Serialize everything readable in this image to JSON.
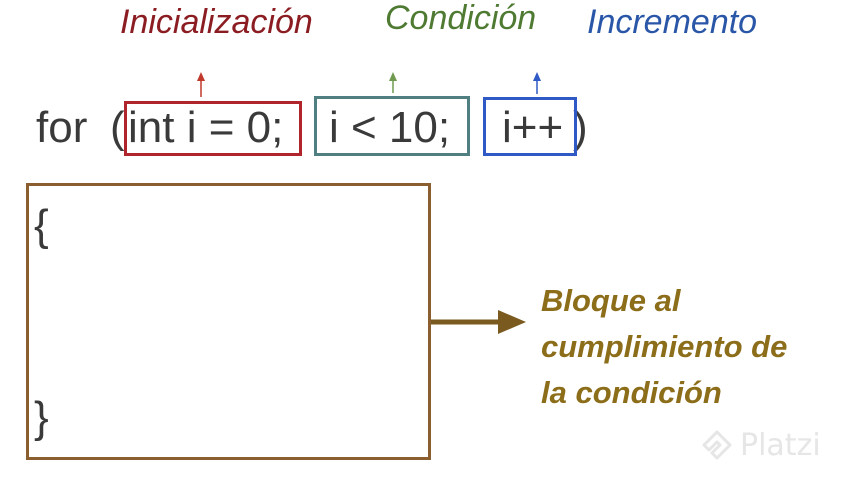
{
  "labels": {
    "initialization": "Inicialización",
    "condition": "Condición",
    "increment": "Incremento"
  },
  "code": {
    "keyword": "for",
    "open_paren": "(",
    "initialization": "int i = 0;",
    "condition": "i < 10;",
    "increment": "i++",
    "close_paren": ")",
    "open_brace": "{",
    "close_brace": "}"
  },
  "block_label": {
    "lines": [
      "Bloque al",
      "cumplimiento de",
      "la condición"
    ]
  },
  "watermark": {
    "text": "Platzi",
    "icon": "platzi-logo-icon"
  },
  "colors": {
    "initialization": "#8b1d22",
    "condition": "#4e7a32",
    "increment": "#2a56a8",
    "block": "#8a5e2e",
    "block_label": "#8c6d1a",
    "code": "#3a3a3a"
  }
}
